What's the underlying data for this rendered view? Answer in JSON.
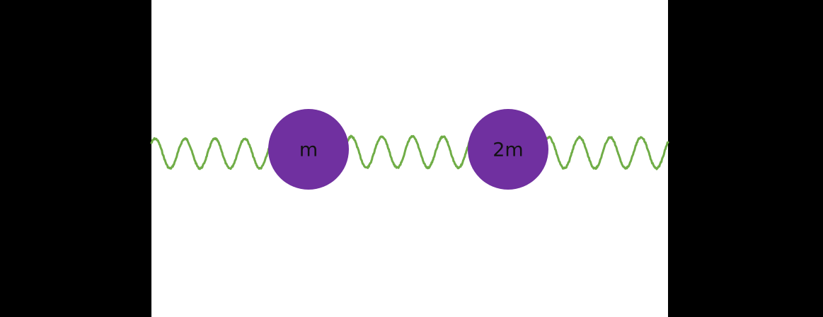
{
  "colors": {
    "background_outer": "#000000",
    "panel": "#ffffff",
    "spring": "#70ad47",
    "mass": "#7030a0",
    "label": "#111111"
  },
  "masses": [
    {
      "label": "m"
    },
    {
      "label": "2m"
    }
  ]
}
